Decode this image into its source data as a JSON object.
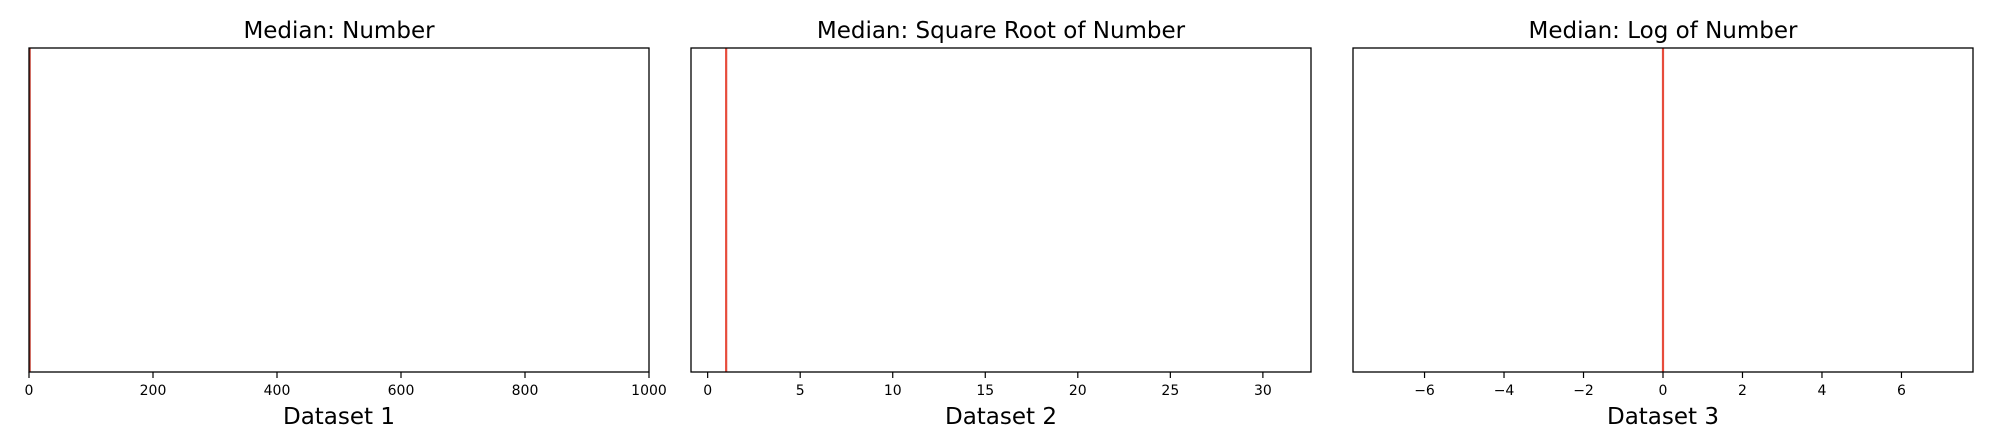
{
  "chart_data": [
    {
      "type": "histogram",
      "title": "Median: Number",
      "xlabel": "Dataset 1",
      "ylabel": "",
      "xlim": [
        0,
        1000
      ],
      "xticks": [
        0,
        200,
        400,
        600,
        800,
        1000
      ],
      "xtick_labels": [
        "0",
        "200",
        "400",
        "600",
        "800",
        "1000"
      ],
      "median": 1,
      "grid": false,
      "colors": {
        "median_line": "#c0392b",
        "axes": "#000000"
      }
    },
    {
      "type": "histogram",
      "title": "Median: Square Root of Number",
      "xlabel": "Dataset 2",
      "ylabel": "",
      "xlim": [
        -0.9,
        32.6
      ],
      "xticks": [
        0,
        5,
        10,
        15,
        20,
        25,
        30
      ],
      "xtick_labels": [
        "0",
        "5",
        "10",
        "15",
        "20",
        "25",
        "30"
      ],
      "median": 1,
      "grid": false,
      "colors": {
        "median_line": "#e74c3c",
        "axes": "#000000"
      }
    },
    {
      "type": "histogram",
      "title": "Median: Log of Number",
      "xlabel": "Dataset 3",
      "ylabel": "",
      "xlim": [
        -7.8,
        7.8
      ],
      "xticks": [
        -6,
        -4,
        -2,
        0,
        2,
        4,
        6
      ],
      "xtick_labels": [
        "−6",
        "−4",
        "−2",
        "0",
        "2",
        "4",
        "6"
      ],
      "median": 0,
      "grid": false,
      "colors": {
        "median_line": "#e74c3c",
        "axes": "#000000"
      }
    }
  ]
}
